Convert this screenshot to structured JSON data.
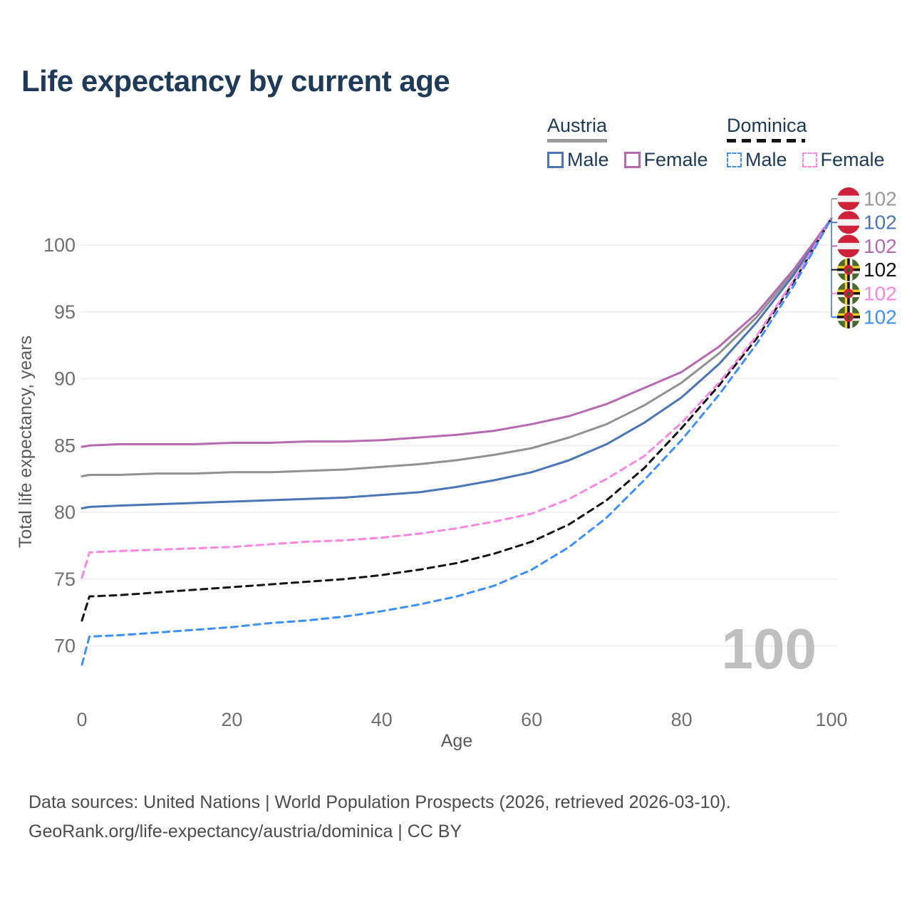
{
  "title": "Life expectancy by current age",
  "watermark": "100",
  "legend": {
    "groups": [
      {
        "label": "Austria",
        "line_style": "solid",
        "underline_color": "#9a9a9a",
        "items": [
          {
            "label": "Male",
            "color": "#4a76b8"
          },
          {
            "label": "Female",
            "color": "#b56ab0"
          }
        ]
      },
      {
        "label": "Dominica",
        "line_style": "dashed",
        "underline_color": "#141414",
        "items": [
          {
            "label": "Male",
            "color": "#3d8eff"
          },
          {
            "label": "Female",
            "color": "#fc85e1"
          }
        ]
      }
    ]
  },
  "chart_data": {
    "type": "line",
    "title": "Life expectancy by current age",
    "xlabel": "Age",
    "ylabel": "Total life expectancy, years",
    "xlim": [
      0,
      100
    ],
    "ylim": [
      68,
      103
    ],
    "x_ticks": [
      0,
      20,
      40,
      60,
      80,
      100
    ],
    "y_ticks": [
      70,
      75,
      80,
      85,
      90,
      95,
      100
    ],
    "grid": "horizontal",
    "legend_position": "top-right",
    "ages": [
      0,
      1,
      5,
      10,
      15,
      20,
      25,
      30,
      35,
      40,
      45,
      50,
      55,
      60,
      65,
      70,
      75,
      80,
      85,
      90,
      95,
      100
    ],
    "series": [
      {
        "id": "austria-both",
        "name": "Austria — Both sexes",
        "country": "Austria",
        "sex": "Both",
        "color": "#919191",
        "dash": "solid",
        "flag": "austria",
        "end_value": 102,
        "values": [
          82.7,
          82.8,
          82.8,
          82.9,
          82.9,
          83.0,
          83.0,
          83.1,
          83.2,
          83.4,
          83.6,
          83.9,
          84.3,
          84.8,
          85.6,
          86.6,
          88.0,
          89.7,
          91.9,
          94.6,
          98.0,
          102
        ]
      },
      {
        "id": "austria-male",
        "name": "Austria — Male",
        "country": "Austria",
        "sex": "Male",
        "color": "#4a76b8",
        "dash": "solid",
        "flag": "austria",
        "end_value": 102,
        "values": [
          80.3,
          80.4,
          80.5,
          80.6,
          80.7,
          80.8,
          80.9,
          81.0,
          81.1,
          81.3,
          81.5,
          81.9,
          82.4,
          83.0,
          83.9,
          85.1,
          86.7,
          88.6,
          91.1,
          94.2,
          97.8,
          102
        ]
      },
      {
        "id": "austria-female",
        "name": "Austria — Female",
        "country": "Austria",
        "sex": "Female",
        "color": "#b56ab0",
        "dash": "solid",
        "flag": "austria",
        "end_value": 102,
        "values": [
          84.9,
          85.0,
          85.1,
          85.1,
          85.1,
          85.2,
          85.2,
          85.3,
          85.3,
          85.4,
          85.6,
          85.8,
          86.1,
          86.6,
          87.2,
          88.1,
          89.3,
          90.5,
          92.4,
          94.9,
          98.2,
          102
        ]
      },
      {
        "id": "dominica-both",
        "name": "Dominica — Both sexes",
        "country": "Dominica",
        "sex": "Both",
        "color": "#141414",
        "dash": "dashed",
        "flag": "dominica",
        "end_value": 102,
        "values": [
          71.9,
          73.7,
          73.8,
          74.0,
          74.2,
          74.4,
          74.6,
          74.8,
          75.0,
          75.3,
          75.7,
          76.2,
          76.9,
          77.8,
          79.1,
          80.9,
          83.3,
          86.3,
          89.5,
          93.0,
          97.3,
          102
        ]
      },
      {
        "id": "dominica-female",
        "name": "Dominica — Female",
        "country": "Dominica",
        "sex": "Female",
        "color": "#fc85e1",
        "dash": "dashed",
        "flag": "dominica",
        "end_value": 102,
        "values": [
          75.1,
          77.0,
          77.1,
          77.2,
          77.3,
          77.4,
          77.6,
          77.8,
          77.9,
          78.1,
          78.4,
          78.8,
          79.3,
          79.9,
          81.0,
          82.5,
          84.2,
          86.7,
          89.7,
          93.2,
          97.4,
          102
        ]
      },
      {
        "id": "dominica-male",
        "name": "Dominica — Male",
        "country": "Dominica",
        "sex": "Male",
        "color": "#3d8eff",
        "dash": "dashed",
        "flag": "dominica",
        "end_value": 102,
        "values": [
          68.6,
          70.7,
          70.8,
          71.0,
          71.2,
          71.4,
          71.7,
          71.9,
          72.2,
          72.6,
          73.1,
          73.7,
          74.5,
          75.7,
          77.4,
          79.6,
          82.4,
          85.4,
          88.8,
          92.6,
          97.0,
          102
        ]
      }
    ],
    "end_labels": [
      {
        "value": "102",
        "flag": "austria",
        "color": "#9a9a9a"
      },
      {
        "value": "102",
        "flag": "austria",
        "color": "#4a76b8"
      },
      {
        "value": "102",
        "flag": "austria",
        "color": "#b56ab0"
      },
      {
        "value": "102",
        "flag": "dominica",
        "color": "#141414"
      },
      {
        "value": "102",
        "flag": "dominica",
        "color": "#fc85e1"
      },
      {
        "value": "102",
        "flag": "dominica",
        "color": "#3d8eff"
      }
    ],
    "flag_colors": {
      "austria": {
        "red": "#d0213a",
        "white": "#f2f0f1"
      },
      "dominica": {
        "green": "#4a6a2d",
        "yellow": "#f3cf1c",
        "black": "#17120d",
        "white": "#f4f2f2",
        "red": "#cf1f3c",
        "parrot": "#355c22"
      }
    }
  },
  "footer": {
    "line1": "Data sources: United Nations | World Population Prospects (2026, retrieved 2026-03-10).",
    "line2": "GeoRank.org/life-expectancy/austria/dominica | CC BY"
  }
}
